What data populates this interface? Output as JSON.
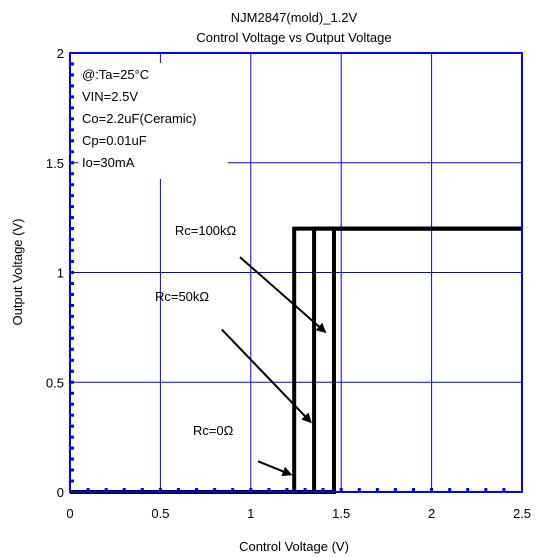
{
  "chart_data": {
    "type": "line",
    "title": "NJM2847(mold)_1.2V",
    "subtitle": "Control Voltage vs Output Voltage",
    "xlabel": "Control Voltage (V)",
    "ylabel": "Output Voltage (V)",
    "xlim": [
      0,
      2.5
    ],
    "ylim": [
      0,
      2
    ],
    "x_ticks": [
      "0",
      "0.5",
      "1",
      "1.5",
      "2",
      "2.5"
    ],
    "y_ticks": [
      "0",
      "0.5",
      "1",
      "1.5",
      "2"
    ],
    "grid": true,
    "conditions": [
      "@:Ta=25°C",
      "VIN=2.5V",
      "Co=2.2uF(Ceramic)",
      "Cp=0.01uF",
      "Io=30mA"
    ],
    "series": [
      {
        "name": "Rc=0Ω",
        "x": [
          0,
          1.24,
          1.24,
          2.5
        ],
        "y": [
          0,
          0,
          1.2,
          1.2
        ]
      },
      {
        "name": "Rc=50kΩ",
        "x": [
          0,
          1.35,
          1.35,
          2.5
        ],
        "y": [
          0,
          0,
          1.2,
          1.2
        ]
      },
      {
        "name": "Rc=100kΩ",
        "x": [
          0,
          1.46,
          1.46,
          2.5
        ],
        "y": [
          0,
          0,
          1.2,
          1.2
        ]
      }
    ],
    "annotations": [
      {
        "text": "Rc=100kΩ",
        "label_at": [
          0.58,
          1.17
        ],
        "arrow_from": [
          0.94,
          1.07
        ],
        "arrow_to": [
          1.41,
          0.73
        ]
      },
      {
        "text": "Rc=50kΩ",
        "label_at": [
          0.47,
          0.87
        ],
        "arrow_from": [
          0.84,
          0.74
        ],
        "arrow_to": [
          1.33,
          0.32
        ]
      },
      {
        "text": "Rc=0Ω",
        "label_at": [
          0.68,
          0.26
        ],
        "arrow_from": [
          1.04,
          0.14
        ],
        "arrow_to": [
          1.22,
          0.08
        ]
      }
    ],
    "colors": {
      "grid": "#0000ff",
      "frame": "#0000ff",
      "line": "#000000"
    }
  }
}
